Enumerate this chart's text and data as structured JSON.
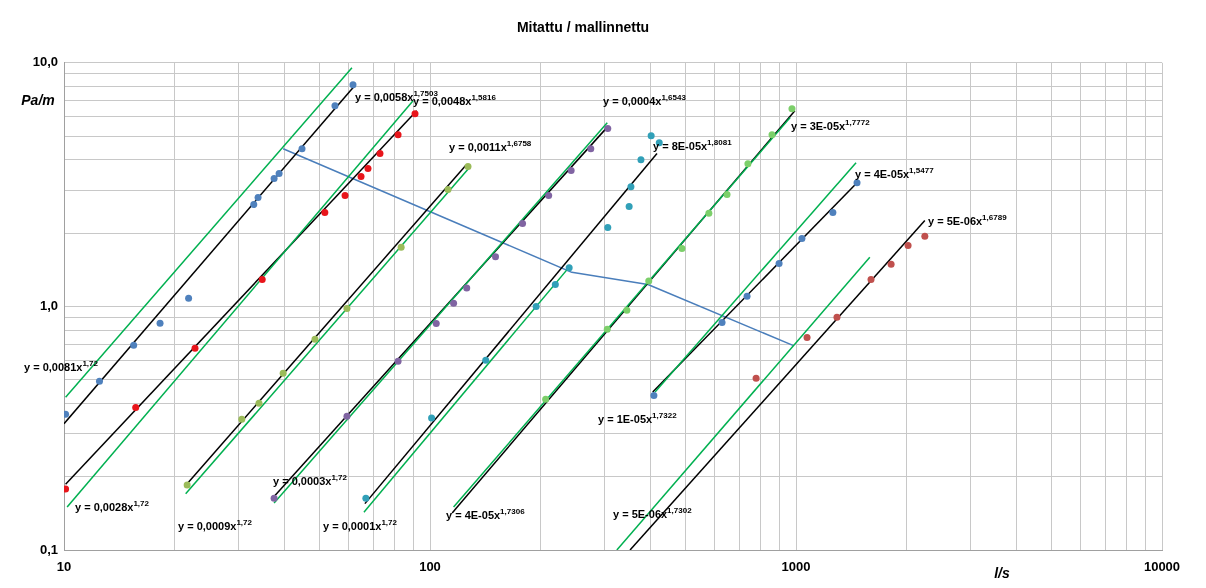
{
  "chart_data": {
    "type": "scatter",
    "title": "Mitattu / mallinnettu",
    "xlabel": "l/s",
    "ylabel": "Pa/m",
    "log": "xy",
    "grid": true,
    "legend": false,
    "marker": "circle",
    "xlim": [
      10,
      10000
    ],
    "ylim": [
      0.1,
      10
    ],
    "xticks": [
      10,
      {
        "value": 20,
        "label": null
      },
      {
        "value": 30,
        "label": null
      },
      {
        "value": 40,
        "label": null
      },
      {
        "value": 50,
        "label": null
      },
      {
        "value": 60,
        "label": null
      },
      {
        "value": 70,
        "label": null
      },
      {
        "value": 80,
        "label": null
      },
      {
        "value": 90,
        "label": null
      },
      100,
      {
        "value": 200,
        "label": null
      },
      {
        "value": 300,
        "label": null
      },
      {
        "value": 400,
        "label": null
      },
      {
        "value": 500,
        "label": null
      },
      {
        "value": 600,
        "label": null
      },
      {
        "value": 700,
        "label": null
      },
      {
        "value": 800,
        "label": null
      },
      {
        "value": 900,
        "label": null
      },
      1000,
      {
        "value": 2000,
        "label": null
      },
      {
        "value": 3000,
        "label": null
      },
      {
        "value": 4000,
        "label": null
      },
      {
        "value": 5000,
        "label": null
      },
      {
        "value": 6000,
        "label": null
      },
      {
        "value": 7000,
        "label": null
      },
      {
        "value": 8000,
        "label": null
      },
      {
        "value": 9000,
        "label": null
      },
      10000
    ],
    "yticks": [
      {
        "value": 0.1,
        "label": "0,1"
      },
      {
        "value": 0.2,
        "label": null
      },
      {
        "value": 0.3,
        "label": null
      },
      {
        "value": 0.4,
        "label": null
      },
      {
        "value": 0.5,
        "label": null
      },
      {
        "value": 0.6,
        "label": null
      },
      {
        "value": 0.7,
        "label": null
      },
      {
        "value": 0.8,
        "label": null
      },
      {
        "value": 0.9,
        "label": null
      },
      {
        "value": 1,
        "label": "1,0"
      },
      {
        "value": 2,
        "label": null
      },
      {
        "value": 3,
        "label": null
      },
      {
        "value": 4,
        "label": null
      },
      {
        "value": 5,
        "label": null
      },
      {
        "value": 6,
        "label": null
      },
      {
        "value": 7,
        "label": null
      },
      {
        "value": 8,
        "label": null
      },
      {
        "value": 9,
        "label": null
      },
      {
        "value": 10,
        "label": "10,0"
      }
    ],
    "series": [
      {
        "type": "line",
        "marker": "none",
        "color": "#00b050",
        "x": [
          10.1,
          61.2
        ],
        "values": [
          0.424,
          9.54
        ]
      },
      {
        "type": "line",
        "marker": "none",
        "color": "#000000",
        "x": [
          10,
          62
        ],
        "values": [
          0.33,
          8.0
        ]
      },
      {
        "type": "line",
        "marker": "none",
        "color": "#00b050",
        "x": [
          10.2,
          89.9
        ],
        "values": [
          0.15,
          6.98
        ]
      },
      {
        "type": "line",
        "marker": "none",
        "color": "#000000",
        "x": [
          10.1,
          92
        ],
        "values": [
          0.186,
          6.35
        ]
      },
      {
        "type": "line",
        "marker": "none",
        "color": "#00b050",
        "x": [
          21.5,
          127.5
        ],
        "values": [
          0.17,
          3.68
        ]
      },
      {
        "type": "line",
        "marker": "none",
        "color": "#000000",
        "x": [
          21.7,
          125
        ],
        "values": [
          0.187,
          3.78
        ]
      },
      {
        "type": "line",
        "marker": "none",
        "color": "#00b050",
        "x": [
          37.5,
          305
        ],
        "values": [
          0.156,
          5.68
        ]
      },
      {
        "type": "line",
        "marker": "none",
        "color": "#000000",
        "x": [
          37.5,
          306
        ],
        "values": [
          0.166,
          5.47
        ]
      },
      {
        "type": "line",
        "marker": "none",
        "color": "#00b050",
        "x": [
          66,
          241
        ],
        "values": [
          0.143,
          1.46
        ]
      },
      {
        "type": "line",
        "marker": "none",
        "color": "#000000",
        "x": [
          66.4,
          417
        ],
        "values": [
          0.155,
          4.24
        ]
      },
      {
        "type": "line",
        "marker": "none",
        "color": "#00b050",
        "x": [
          116,
          964
        ],
        "values": [
          0.15,
          5.96
        ]
      },
      {
        "type": "line",
        "marker": "none",
        "color": "#000000",
        "x": [
          115,
          993
        ],
        "values": [
          0.142,
          6.36
        ]
      },
      {
        "type": "line",
        "marker": "none",
        "color": "#00b050",
        "x": [
          412,
          1459
        ],
        "values": [
          0.445,
          3.89
        ]
      },
      {
        "type": "line",
        "marker": "none",
        "color": "#000000",
        "x": [
          406,
          1468
        ],
        "values": [
          0.445,
          3.22
        ]
      },
      {
        "type": "line",
        "marker": "none",
        "color": "#00b050",
        "x": [
          324,
          1591
        ],
        "values": [
          0.1,
          1.59
        ]
      },
      {
        "type": "line",
        "marker": "none",
        "color": "#000000",
        "x": [
          352,
          2249
        ],
        "values": [
          0.1,
          2.25
        ]
      },
      {
        "type": "line",
        "marker": "none",
        "color": "#4a7ebb",
        "x": [
          39.7,
          244,
          394,
          981
        ],
        "values": [
          4.44,
          1.38,
          1.23,
          0.692
        ]
      },
      {
        "color": "#4f81bd",
        "x": [
          10.1,
          12.5,
          15.5,
          18.3,
          21.9,
          33.0,
          33.9,
          37.5,
          38.7,
          44.7,
          55.0,
          61.6
        ],
        "values": [
          0.361,
          0.493,
          0.692,
          0.852,
          1.08,
          2.62,
          2.8,
          3.35,
          3.51,
          4.44,
          6.67,
          8.13
        ]
      },
      {
        "color": "#e8151b",
        "x": [
          10.1,
          15.7,
          22.8,
          34.8,
          51.6,
          58.6,
          64.8,
          67.7,
          73.0,
          81.8,
          91.0
        ],
        "values": [
          0.178,
          0.385,
          0.673,
          1.29,
          2.43,
          2.85,
          3.41,
          3.68,
          4.24,
          5.07,
          6.18
        ]
      },
      {
        "color": "#9bbb59",
        "x": [
          21.7,
          30.6,
          34.1,
          39.7,
          48.5,
          59.3,
          83.4,
          112,
          127
        ],
        "values": [
          0.185,
          0.344,
          0.4,
          0.531,
          0.733,
          0.98,
          1.75,
          3.02,
          3.75
        ]
      },
      {
        "color": "#8064a2",
        "x": [
          37.5,
          59.3,
          81.8,
          104,
          116,
          126,
          151,
          179,
          211,
          243,
          275,
          306
        ],
        "values": [
          0.163,
          0.354,
          0.596,
          0.851,
          1.03,
          1.19,
          1.6,
          2.19,
          2.85,
          3.61,
          4.44,
          5.37
        ]
      },
      {
        "color": "#31a0b8",
        "x": [
          66.8,
          101,
          142,
          195,
          220,
          240,
          306,
          350,
          354,
          377,
          402,
          423
        ],
        "values": [
          0.163,
          0.348,
          0.601,
          1.0,
          1.23,
          1.44,
          2.11,
          2.57,
          3.1,
          4.0,
          5.02,
          4.7
        ]
      },
      {
        "color": "#7ccf6a",
        "x": [
          207,
          305,
          345,
          396,
          488,
          578,
          648,
          739,
          860,
          975
        ],
        "values": [
          0.416,
          0.805,
          0.964,
          1.27,
          1.73,
          2.41,
          2.88,
          3.85,
          5.07,
          6.47
        ]
      },
      {
        "color": "#4f81bd",
        "x": [
          409,
          628,
          735,
          899,
          1038,
          1261,
          1468
        ],
        "values": [
          0.431,
          0.859,
          1.1,
          1.5,
          1.9,
          2.43,
          3.22
        ]
      },
      {
        "color": "#c0504d",
        "x": [
          778,
          1072,
          1294,
          1603,
          1819,
          2024,
          2249
        ],
        "values": [
          0.507,
          0.746,
          0.902,
          1.29,
          1.49,
          1.78,
          1.94
        ]
      }
    ],
    "annotations": [
      "y = 0,0058x$^{1,7503}$",
      "y = 0,0048x$^{1,5816}$",
      "y = 0,0011x$^{1,6758}$",
      "y = 0,0004x$^{1,6543}$",
      "y = 8E-05x$^{1,8081}$",
      "y = 3E-05x$^{1,7772}$",
      "y = 4E-05x$^{1,5477}$",
      "y = 5E-06x$^{1,6789}$",
      "y = 0,0081x$^{1,72}$",
      "y = 0,0028x$^{1,72}$",
      "y = 0,0009x$^{1,72}$",
      "y = 0,0003x$^{1,72}$",
      "y = 0,0001x$^{1,72}$",
      "y = 4E-05x$^{1,7306}$",
      "y = 1E-05x$^{1,7322}$",
      "y = 5E-06x$^{1,7302}$"
    ]
  }
}
